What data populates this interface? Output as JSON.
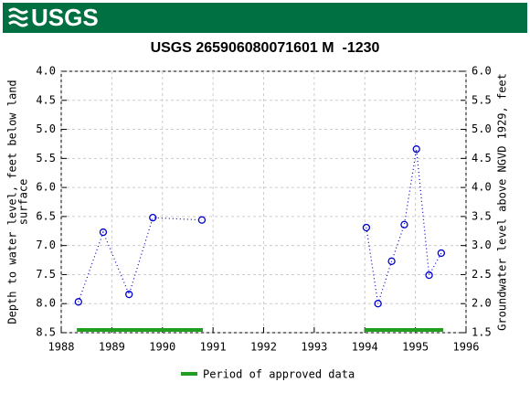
{
  "header": {
    "logo": "USGS"
  },
  "chart_data": {
    "type": "scatter",
    "title": "USGS 265906080071601 M  -1230",
    "y_label": [
      "Depth to water level, feet below land",
      "surface"
    ],
    "y2_label": "Groundwater level above NGVD 1929, feet",
    "series": [
      {
        "name": "Depth to water level",
        "color": "#0000cc",
        "x": [
          1988.34,
          1988.83,
          1989.34,
          1989.81,
          1990.78,
          null,
          1994.03,
          1994.26,
          1994.53,
          1994.78,
          1995.02,
          1995.27,
          1995.51
        ],
        "values": [
          7.97,
          6.77,
          7.84,
          6.52,
          6.56,
          null,
          6.69,
          8.0,
          7.27,
          6.64,
          5.34,
          7.51,
          7.13
        ]
      }
    ],
    "approved_periods": {
      "name": "Period of approved data",
      "color": "#1f9e1f",
      "ranges": [
        [
          1988.31,
          1990.8
        ],
        [
          1993.99,
          1995.55
        ]
      ]
    },
    "xlim": [
      1988,
      1996
    ],
    "xticks": [
      1988,
      1989,
      1990,
      1991,
      1992,
      1993,
      1994,
      1995,
      1996
    ],
    "ylim": [
      8.5,
      4.0
    ],
    "yticks": [
      {
        "value": 4,
        "label": "4.0"
      },
      {
        "value": 4.5,
        "label": "4.5"
      },
      {
        "value": 5,
        "label": "5.0"
      },
      {
        "value": 5.5,
        "label": "5.5"
      },
      {
        "value": 6,
        "label": "6.0"
      },
      {
        "value": 6.5,
        "label": "6.5"
      },
      {
        "value": 7,
        "label": "7.0"
      },
      {
        "value": 7.5,
        "label": "7.5"
      },
      {
        "value": 8,
        "label": "8.0"
      },
      {
        "value": 8.5,
        "label": "8.5"
      }
    ],
    "y2lim": [
      1.5,
      6.0
    ],
    "y2ticks": [
      {
        "value": 6,
        "label": "6.0"
      },
      {
        "value": 5.5,
        "label": "5.5"
      },
      {
        "value": 5,
        "label": "5.0"
      },
      {
        "value": 4.5,
        "label": "4.5"
      },
      {
        "value": 4,
        "label": "4.0"
      },
      {
        "value": 3.5,
        "label": "3.5"
      },
      {
        "value": 3,
        "label": "3.0"
      },
      {
        "value": 2.5,
        "label": "2.5"
      },
      {
        "value": 2,
        "label": "2.0"
      },
      {
        "value": 1.5,
        "label": "1.5"
      }
    ],
    "grid": true
  }
}
